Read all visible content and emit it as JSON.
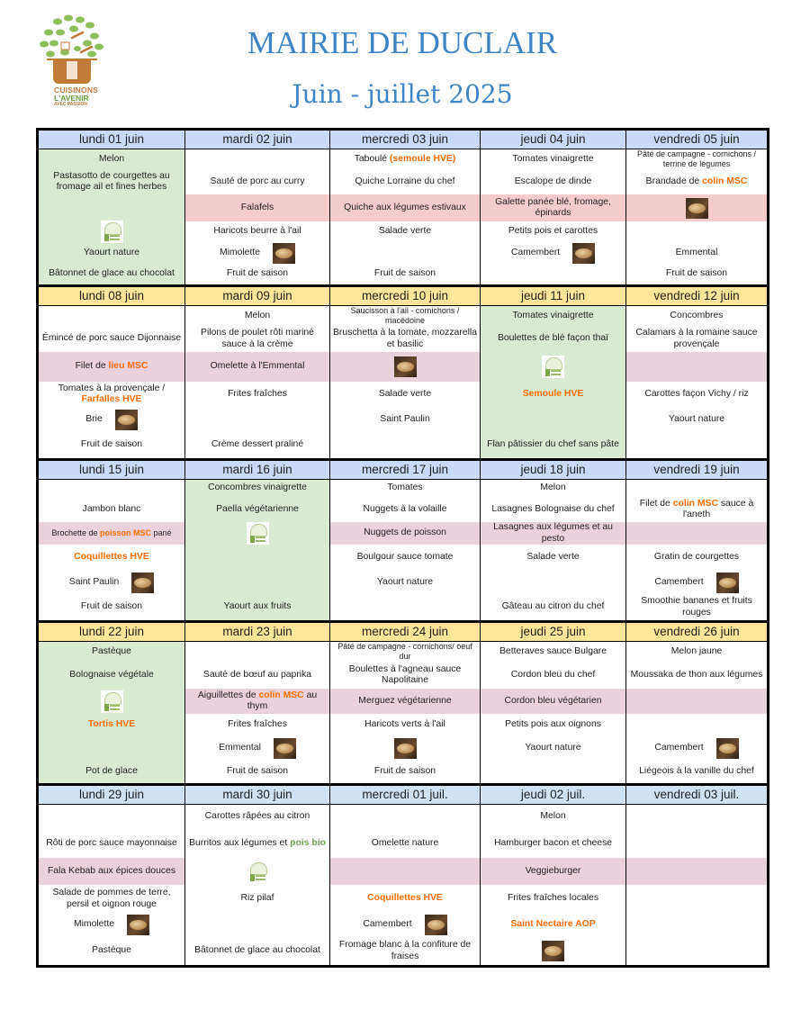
{
  "logo": {
    "line1": "CUISINONS",
    "line2": "L'AVENIR",
    "line3": "AVEC PASSION"
  },
  "title": "MAIRIE DE DUCLAIR",
  "subtitle": "Juin - juillet 2025",
  "colors": {
    "title": "#3d85c6",
    "hve_msc": "#ff6d01",
    "bio": "#6aa84f",
    "vege_day": "#d9ead3"
  },
  "weeks": [
    {
      "header_color": "#c9daf8",
      "alt_color": "#f4cccc",
      "days": [
        {
          "label": "lundi 01 juin",
          "vege_day": true,
          "items": [
            "Melon",
            "Pastasotto de courgettes au fromage ail et fines herbes",
            null,
            {
              "icon": "vege"
            },
            "Yaourt nature",
            "Bâtonnet de glace au chocolat"
          ]
        },
        {
          "label": "mardi 02 juin",
          "items": [
            null,
            "Sauté de porc au curry",
            "Falafels",
            "Haricots beurre à l'ail",
            {
              "segs": [
                {
                  "t": "Mimolette"
                }
              ],
              "icon": "bread"
            },
            "Fruit de saison"
          ]
        },
        {
          "label": "mercredi 03 juin",
          "items": [
            {
              "segs": [
                {
                  "t": "Taboulé  "
                },
                {
                  "t": "(semoule HVE)",
                  "hl": "hve_msc"
                }
              ]
            },
            "Quiche Lorraine du chef",
            "Quiche aux légumes estivaux",
            "Salade verte",
            null,
            "Fruit de saison"
          ]
        },
        {
          "label": "jeudi 04 juin",
          "items": [
            "Tomates vinaigrette",
            "Escalope de dinde",
            "Galette panée blé, fromage, épinards",
            "Petits pois et carottes",
            {
              "segs": [
                {
                  "t": "Camembert"
                }
              ],
              "icon": "bread"
            },
            null
          ]
        },
        {
          "label": "vendredi 05 juin",
          "items": [
            {
              "segs": [
                {
                  "t": "Pâté de campagne - cornichons / terrine de légumes"
                }
              ],
              "small": true
            },
            {
              "segs": [
                {
                  "t": "Brandade de "
                },
                {
                  "t": "colin MSC",
                  "hl": "hve_msc"
                }
              ]
            },
            {
              "icon": "bread"
            },
            null,
            "Emmental",
            "Fruit de saison"
          ]
        }
      ]
    },
    {
      "header_color": "#ffe599",
      "alt_color": "#ead1dc",
      "days": [
        {
          "label": "lundi 08 juin",
          "items": [
            null,
            "Émincé de porc sauce Dijonnaise",
            {
              "segs": [
                {
                  "t": "Filet de "
                },
                {
                  "t": "lieu MSC",
                  "hl": "hve_msc"
                }
              ]
            },
            {
              "segs": [
                {
                  "t": "Tomates à la provençale / "
                },
                {
                  "t": "Farfalles HVE",
                  "hl": "hve_msc"
                }
              ]
            },
            {
              "segs": [
                {
                  "t": "Brie"
                }
              ],
              "icon": "bread"
            },
            "Fruit de saison"
          ]
        },
        {
          "label": "mardi 09 juin",
          "items": [
            "Melon",
            "Pilons de poulet rôti mariné sauce à la crème",
            "Omelette à l'Emmental",
            "Frites fraîches",
            null,
            "Crème dessert praliné"
          ]
        },
        {
          "label": "mercredi 10 juin",
          "items": [
            {
              "segs": [
                {
                  "t": "Saucisson à l'ail - cornichons / macédoine"
                }
              ],
              "small": true
            },
            "Bruschetta à la tomate, mozzarella et basilic",
            {
              "icon": "bread"
            },
            "Salade verte",
            "Saint Paulin",
            null
          ]
        },
        {
          "label": "jeudi 11 juin",
          "vege_day": true,
          "items": [
            "Tomates vinaigrette",
            "Boulettes de blé façon thaï",
            {
              "icon": "vege"
            },
            {
              "segs": [
                {
                  "t": "Semoule HVE",
                  "hl": "hve_msc"
                }
              ]
            },
            null,
            "Flan pâtissier du chef sans pâte"
          ]
        },
        {
          "label": "vendredi 12 juin",
          "items": [
            "Concombres",
            "Calamars à la romaine sauce provençale",
            null,
            "Carottes façon Vichy / riz",
            "Yaourt nature",
            null
          ]
        }
      ]
    },
    {
      "header_color": "#c9daf8",
      "alt_color": "#ead1dc",
      "days": [
        {
          "label": "lundi 15 juin",
          "items": [
            null,
            "Jambon blanc",
            {
              "segs": [
                {
                  "t": "Brochette de "
                },
                {
                  "t": "poisson MSC",
                  "hl": "hve_msc"
                },
                {
                  "t": " pané"
                }
              ],
              "small": true
            },
            {
              "segs": [
                {
                  "t": "Coquillettes HVE",
                  "hl": "hve_msc"
                }
              ]
            },
            {
              "segs": [
                {
                  "t": "Saint Paulin"
                }
              ],
              "icon": "bread"
            },
            "Fruit de saison"
          ]
        },
        {
          "label": "mardi 16 juin",
          "vege_day": true,
          "items": [
            "Concombres vinaigrette",
            "Paella végétarienne",
            {
              "icon": "vege"
            },
            null,
            null,
            "Yaourt aux fruits"
          ]
        },
        {
          "label": "mercredi 17 juin",
          "items": [
            "Tomates",
            "Nuggets à la volaille",
            "Nuggets de poisson",
            "Boulgour sauce tomate",
            "Yaourt nature",
            null
          ]
        },
        {
          "label": "jeudi 18 juin",
          "items": [
            "Melon",
            "Lasagnes Bolognaise du chef",
            "Lasagnes aux légumes et au pesto",
            "Salade verte",
            null,
            "Gâteau au citron du chef"
          ]
        },
        {
          "label": "vendredi 19 juin",
          "items": [
            null,
            {
              "segs": [
                {
                  "t": "Filet de "
                },
                {
                  "t": "colin MSC",
                  "hl": "hve_msc"
                },
                {
                  "t": " sauce à l'aneth"
                }
              ]
            },
            null,
            "Gratin de courgettes",
            {
              "segs": [
                {
                  "t": "Camembert"
                }
              ],
              "icon": "bread"
            },
            "Smoothie bananes et fruits rouges"
          ]
        }
      ]
    },
    {
      "header_color": "#ffe599",
      "alt_color": "#ead1dc",
      "days": [
        {
          "label": "lundi 22 juin",
          "vege_day": true,
          "items": [
            "Pastèque",
            "Bolognaise végétale",
            {
              "icon": "vege"
            },
            {
              "segs": [
                {
                  "t": "Tortis HVE",
                  "hl": "hve_msc"
                }
              ]
            },
            null,
            "Pot de glace"
          ]
        },
        {
          "label": "mardi 23 juin",
          "items": [
            null,
            "Sauté de bœuf au paprika",
            {
              "segs": [
                {
                  "t": "Aiguillettes de "
                },
                {
                  "t": "colin MSC",
                  "hl": "hve_msc"
                },
                {
                  "t": " au thym"
                }
              ]
            },
            "Frites fraîches",
            {
              "segs": [
                {
                  "t": "Emmental"
                }
              ],
              "icon": "bread"
            },
            "Fruit de saison"
          ]
        },
        {
          "label": "mercredi 24 juin",
          "items": [
            {
              "segs": [
                {
                  "t": "Pâté de campagne - cornichons/ oeuf dur"
                }
              ],
              "small": true
            },
            "Boulettes à l'agneau sauce Napolitaine",
            "Merguez végétarienne",
            "Haricots verts à l'ail",
            {
              "icon": "bread"
            },
            "Fruit de saison"
          ]
        },
        {
          "label": "jeudi 25 juin",
          "items": [
            "Betteraves sauce Bulgare",
            "Cordon bleu du chef",
            "Cordon bleu végétarien",
            "Petits pois aux oignons",
            "Yaourt nature",
            null
          ]
        },
        {
          "label": "vendredi 26 juin",
          "items": [
            "Melon jaune",
            "Moussaka de thon aux légumes",
            null,
            null,
            {
              "segs": [
                {
                  "t": "Camembert"
                }
              ],
              "icon": "bread"
            },
            "Liégeois à la vanille du chef"
          ]
        }
      ]
    },
    {
      "header_color": "#cfe2f3",
      "alt_color": "#ead1dc",
      "days": [
        {
          "label": "lundi 29 juin",
          "items": [
            null,
            "Rôti de porc sauce mayonnaise",
            "Fala Kebab aux épices douces",
            "Salade de pommes de terre, persil et oignon rouge",
            {
              "segs": [
                {
                  "t": "Mimolette"
                }
              ],
              "icon": "bread"
            },
            "Pastèque"
          ]
        },
        {
          "label": "mardi 30 juin",
          "items": [
            "Carottes râpées au citron",
            {
              "segs": [
                {
                  "t": "Burritos aux légumes et "
                },
                {
                  "t": "pois bio",
                  "hl": "bio"
                }
              ]
            },
            {
              "icon": "vege"
            },
            "Riz pilaf",
            null,
            "Bâtonnet de glace au chocolat"
          ]
        },
        {
          "label": "mercredi 01 juil.",
          "items": [
            null,
            "Omelette nature",
            null,
            {
              "segs": [
                {
                  "t": "Coquillettes HVE",
                  "hl": "hve_msc"
                }
              ]
            },
            {
              "segs": [
                {
                  "t": "Camembert"
                }
              ],
              "icon": "bread"
            },
            "Fromage blanc à la confiture de fraises"
          ]
        },
        {
          "label": "jeudi 02 juil.",
          "items": [
            "Melon",
            "Hamburger bacon et cheese",
            "Veggieburger",
            "Frites fraîches locales",
            {
              "segs": [
                {
                  "t": "Saint Nectaire AOP",
                  "hl": "hve_msc"
                }
              ]
            },
            {
              "icon": "bread"
            }
          ]
        },
        {
          "label": "vendredi 03 juil.",
          "items": [
            null,
            null,
            null,
            null,
            null,
            null
          ]
        }
      ]
    }
  ]
}
